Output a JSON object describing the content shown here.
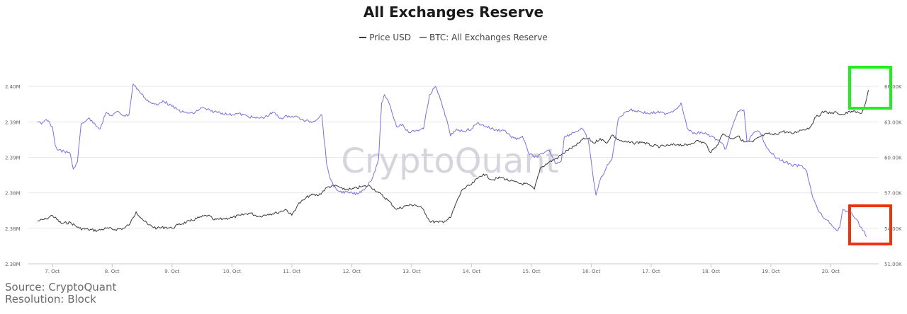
{
  "colors": {
    "price": "#3a3a3a",
    "reserve": "#7b6fe0",
    "highlight_up": "#22ee22",
    "highlight_down": "#ee3311",
    "grid": "#e8e8e8",
    "watermark": "#d5d5dd"
  },
  "source_text": "Source: CryptoQuant",
  "resolution_text": "Resolution: Block",
  "watermark": "CryptoQuant",
  "chart_data": {
    "type": "line",
    "title": "All Exchanges Reserve",
    "legend_position": "top-center",
    "grid": true,
    "x_tick_labels": [
      "7. Oct",
      "8. Oct",
      "9. Oct",
      "10. Oct",
      "11. Oct",
      "12. Oct",
      "13. Oct",
      "14. Oct",
      "15. Oct",
      "16. Oct",
      "17. Oct",
      "18. Oct",
      "19. Oct",
      "20. Oct"
    ],
    "x_range_days": [
      6.6,
      20.8
    ],
    "left_axis": {
      "series": "BTC: All Exchanges Reserve",
      "tick_labels": [
        "2.38M",
        "2.38M",
        "2.38M",
        "2.39M",
        "2.39M",
        "2.40M"
      ]
    },
    "right_axis": {
      "series": "Price USD",
      "tick_labels": [
        "51.00K",
        "54.00K",
        "57.00K",
        "60.00K",
        "63.00K",
        "66.00K"
      ],
      "tick_values": [
        51000,
        54000,
        57000,
        60000,
        63000,
        66000
      ]
    },
    "series": [
      {
        "name": "Price USD",
        "axis": "right",
        "points": [
          [
            6.75,
            54.6
          ],
          [
            6.9,
            54.8
          ],
          [
            7.0,
            55.1
          ],
          [
            7.15,
            54.4
          ],
          [
            7.3,
            54.5
          ],
          [
            7.45,
            54.0
          ],
          [
            7.6,
            53.9
          ],
          [
            7.75,
            53.8
          ],
          [
            7.9,
            54.0
          ],
          [
            8.05,
            53.9
          ],
          [
            8.2,
            54.0
          ],
          [
            8.3,
            54.4
          ],
          [
            8.4,
            55.4
          ],
          [
            8.5,
            54.8
          ],
          [
            8.6,
            54.3
          ],
          [
            8.75,
            54.0
          ],
          [
            8.9,
            54.1
          ],
          [
            9.0,
            54.0
          ],
          [
            9.1,
            54.3
          ],
          [
            9.3,
            54.6
          ],
          [
            9.45,
            54.9
          ],
          [
            9.6,
            55.1
          ],
          [
            9.7,
            54.7
          ],
          [
            9.85,
            54.8
          ],
          [
            10.0,
            54.9
          ],
          [
            10.15,
            55.1
          ],
          [
            10.3,
            55.3
          ],
          [
            10.45,
            55.0
          ],
          [
            10.6,
            55.2
          ],
          [
            10.75,
            55.3
          ],
          [
            10.9,
            55.6
          ],
          [
            11.0,
            55.1
          ],
          [
            11.1,
            56.0
          ],
          [
            11.2,
            56.4
          ],
          [
            11.3,
            56.8
          ],
          [
            11.45,
            56.8
          ],
          [
            11.6,
            57.5
          ],
          [
            11.75,
            57.6
          ],
          [
            11.85,
            57.3
          ],
          [
            12.0,
            57.3
          ],
          [
            12.15,
            57.5
          ],
          [
            12.3,
            57.6
          ],
          [
            12.45,
            57.0
          ],
          [
            12.6,
            56.4
          ],
          [
            12.75,
            55.6
          ],
          [
            12.9,
            55.9
          ],
          [
            13.05,
            56.0
          ],
          [
            13.2,
            55.6
          ],
          [
            13.3,
            54.6
          ],
          [
            13.45,
            54.5
          ],
          [
            13.55,
            54.6
          ],
          [
            13.65,
            54.9
          ],
          [
            13.75,
            56.2
          ],
          [
            13.85,
            57.3
          ],
          [
            14.0,
            57.7
          ],
          [
            14.1,
            58.2
          ],
          [
            14.2,
            58.6
          ],
          [
            14.35,
            58.1
          ],
          [
            14.5,
            58.3
          ],
          [
            14.65,
            58.0
          ],
          [
            14.8,
            57.8
          ],
          [
            14.95,
            57.7
          ],
          [
            15.05,
            57.3
          ],
          [
            15.15,
            59.1
          ],
          [
            15.3,
            59.6
          ],
          [
            15.45,
            60.0
          ],
          [
            15.6,
            60.6
          ],
          [
            15.75,
            61.0
          ],
          [
            15.85,
            61.5
          ],
          [
            15.95,
            61.6
          ],
          [
            16.05,
            61.2
          ],
          [
            16.15,
            61.6
          ],
          [
            16.25,
            61.2
          ],
          [
            16.35,
            61.9
          ],
          [
            16.45,
            61.5
          ],
          [
            16.55,
            61.3
          ],
          [
            16.7,
            61.2
          ],
          [
            16.85,
            61.3
          ],
          [
            17.0,
            61.0
          ],
          [
            17.15,
            60.9
          ],
          [
            17.3,
            61.0
          ],
          [
            17.45,
            61.1
          ],
          [
            17.6,
            61.0
          ],
          [
            17.75,
            61.4
          ],
          [
            17.9,
            61.2
          ],
          [
            18.0,
            60.4
          ],
          [
            18.1,
            61.0
          ],
          [
            18.2,
            62.0
          ],
          [
            18.35,
            61.6
          ],
          [
            18.45,
            61.8
          ],
          [
            18.55,
            61.3
          ],
          [
            18.7,
            61.3
          ],
          [
            18.8,
            61.7
          ],
          [
            18.95,
            62.0
          ],
          [
            19.05,
            61.9
          ],
          [
            19.2,
            62.2
          ],
          [
            19.35,
            62.0
          ],
          [
            19.5,
            62.3
          ],
          [
            19.65,
            62.5
          ],
          [
            19.75,
            63.4
          ],
          [
            19.9,
            63.9
          ],
          [
            20.0,
            63.7
          ],
          [
            20.1,
            63.8
          ],
          [
            20.2,
            63.6
          ],
          [
            20.35,
            63.9
          ],
          [
            20.5,
            63.7
          ],
          [
            20.55,
            64.1
          ],
          [
            20.6,
            65.0
          ],
          [
            20.63,
            65.7
          ]
        ]
      },
      {
        "name": "BTC: All Exchanges Reserve",
        "axis": "left",
        "points": [
          [
            6.75,
            63.0
          ],
          [
            6.82,
            62.8
          ],
          [
            6.9,
            63.2
          ],
          [
            7.0,
            62.6
          ],
          [
            7.05,
            61.0
          ],
          [
            7.1,
            60.6
          ],
          [
            7.2,
            60.5
          ],
          [
            7.3,
            60.3
          ],
          [
            7.35,
            59.0
          ],
          [
            7.42,
            59.6
          ],
          [
            7.48,
            62.8
          ],
          [
            7.6,
            63.3
          ],
          [
            7.7,
            62.9
          ],
          [
            7.8,
            62.4
          ],
          [
            7.9,
            63.8
          ],
          [
            8.0,
            63.5
          ],
          [
            8.1,
            63.9
          ],
          [
            8.2,
            63.5
          ],
          [
            8.28,
            63.6
          ],
          [
            8.35,
            66.2
          ],
          [
            8.45,
            65.6
          ],
          [
            8.55,
            65.0
          ],
          [
            8.65,
            64.6
          ],
          [
            8.75,
            64.4
          ],
          [
            8.85,
            64.8
          ],
          [
            9.0,
            64.3
          ],
          [
            9.1,
            64.0
          ],
          [
            9.2,
            63.8
          ],
          [
            9.35,
            63.7
          ],
          [
            9.5,
            64.2
          ],
          [
            9.65,
            63.9
          ],
          [
            9.8,
            63.8
          ],
          [
            9.95,
            63.6
          ],
          [
            10.1,
            63.7
          ],
          [
            10.25,
            63.5
          ],
          [
            10.4,
            63.3
          ],
          [
            10.55,
            63.4
          ],
          [
            10.7,
            63.8
          ],
          [
            10.8,
            63.3
          ],
          [
            10.95,
            63.5
          ],
          [
            11.1,
            63.4
          ],
          [
            11.2,
            63.1
          ],
          [
            11.35,
            63.0
          ],
          [
            11.5,
            63.6
          ],
          [
            11.58,
            59.5
          ],
          [
            11.62,
            58.6
          ],
          [
            11.7,
            57.5
          ],
          [
            11.8,
            57.1
          ],
          [
            11.95,
            57.0
          ],
          [
            12.1,
            56.9
          ],
          [
            12.25,
            57.5
          ],
          [
            12.35,
            58.3
          ],
          [
            12.45,
            59.9
          ],
          [
            12.5,
            64.6
          ],
          [
            12.55,
            65.3
          ],
          [
            12.65,
            64.2
          ],
          [
            12.75,
            62.6
          ],
          [
            12.85,
            62.8
          ],
          [
            12.95,
            62.1
          ],
          [
            13.1,
            62.3
          ],
          [
            13.2,
            62.4
          ],
          [
            13.3,
            65.3
          ],
          [
            13.4,
            66.0
          ],
          [
            13.48,
            64.9
          ],
          [
            13.58,
            63.3
          ],
          [
            13.65,
            61.8
          ],
          [
            13.75,
            62.4
          ],
          [
            13.85,
            62.2
          ],
          [
            14.0,
            62.4
          ],
          [
            14.1,
            62.9
          ],
          [
            14.25,
            62.6
          ],
          [
            14.4,
            62.3
          ],
          [
            14.55,
            62.3
          ],
          [
            14.65,
            61.8
          ],
          [
            14.75,
            61.5
          ],
          [
            14.85,
            61.8
          ],
          [
            14.95,
            60.4
          ],
          [
            15.05,
            60.0
          ],
          [
            15.2,
            60.3
          ],
          [
            15.3,
            60.6
          ],
          [
            15.4,
            59.5
          ],
          [
            15.5,
            59.7
          ],
          [
            15.55,
            61.7
          ],
          [
            15.7,
            62.1
          ],
          [
            15.85,
            62.4
          ],
          [
            15.95,
            61.5
          ],
          [
            16.02,
            58.8
          ],
          [
            16.08,
            56.8
          ],
          [
            16.15,
            58.1
          ],
          [
            16.25,
            59.1
          ],
          [
            16.35,
            59.9
          ],
          [
            16.45,
            63.2
          ],
          [
            16.55,
            63.8
          ],
          [
            16.65,
            64.0
          ],
          [
            16.8,
            63.9
          ],
          [
            16.95,
            63.7
          ],
          [
            17.1,
            63.8
          ],
          [
            17.25,
            63.7
          ],
          [
            17.4,
            64.0
          ],
          [
            17.5,
            64.6
          ],
          [
            17.6,
            62.5
          ],
          [
            17.7,
            62.0
          ],
          [
            17.85,
            62.1
          ],
          [
            18.0,
            61.8
          ],
          [
            18.15,
            61.3
          ],
          [
            18.25,
            60.7
          ],
          [
            18.35,
            62.5
          ],
          [
            18.45,
            63.9
          ],
          [
            18.55,
            64.0
          ],
          [
            18.6,
            61.3
          ],
          [
            18.7,
            62.0
          ],
          [
            18.8,
            62.2
          ],
          [
            18.9,
            61.2
          ],
          [
            19.0,
            60.4
          ],
          [
            19.1,
            59.9
          ],
          [
            19.25,
            59.6
          ],
          [
            19.35,
            59.3
          ],
          [
            19.5,
            59.3
          ],
          [
            19.6,
            58.8
          ],
          [
            19.7,
            56.6
          ],
          [
            19.8,
            55.4
          ],
          [
            19.9,
            54.8
          ],
          [
            20.0,
            54.4
          ],
          [
            20.1,
            53.8
          ],
          [
            20.15,
            54.1
          ],
          [
            20.2,
            55.6
          ],
          [
            20.25,
            55.4
          ],
          [
            20.35,
            55.3
          ],
          [
            20.42,
            54.8
          ],
          [
            20.5,
            54.1
          ],
          [
            20.55,
            53.8
          ],
          [
            20.6,
            53.3
          ]
        ]
      }
    ]
  }
}
